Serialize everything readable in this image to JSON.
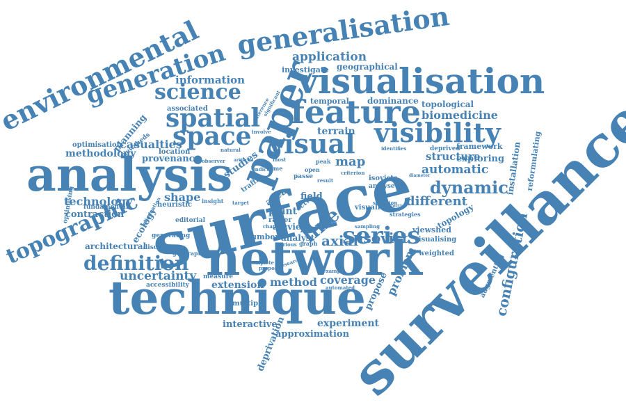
{
  "color": "#4682b4",
  "words": [
    "surface",
    "surveillance",
    "network",
    "technique",
    "analysis",
    "paper",
    "visualisation",
    "feature",
    "generalisation",
    "environmental",
    "generation",
    "visibility",
    "spatial",
    "space",
    "visual",
    "series",
    "science",
    "topographic",
    "definition",
    "line",
    "configuration",
    "dynamic",
    "isovist",
    "axial",
    "application",
    "information",
    "map",
    "automatic",
    "different",
    "uncertainty",
    "coverage",
    "method",
    "problem",
    "technology",
    "structure",
    "biomedicine",
    "terrain",
    "extension",
    "experiment",
    "approximation",
    "interactive",
    "deprivation",
    "propose",
    "shape",
    "methodology",
    "contraction",
    "provenance",
    "casualties",
    "planning",
    "architectural",
    "geographical",
    "topological",
    "investigate",
    "temporal",
    "dominance",
    "exploring",
    "installation",
    "reformulating",
    "framework",
    "augmenting",
    "topology",
    "point",
    "arcview",
    "visualise",
    "visualising",
    "viewshed",
    "weighted",
    "optimisation",
    "viewsheds",
    "location",
    "associated",
    "studies",
    "ecology",
    "fundamental",
    "optimising",
    "heuristic",
    "generating",
    "discussion",
    "editorial",
    "accessibility",
    "measure",
    "multiple",
    "number",
    "analyst",
    "raster",
    "traffic",
    "area",
    "field",
    "analyse",
    "isovists",
    "strategies",
    "deprived",
    "identifies",
    "geographic",
    "insight",
    "natural",
    "observer",
    "involve",
    "difference",
    "significant",
    "target",
    "cctv",
    "graph",
    "open",
    "time",
    "passe",
    "peak",
    "various",
    "complete",
    "research",
    "proposal",
    "automated",
    "sampling",
    "channel",
    "selection",
    "effective",
    "example",
    "criterion",
    "diameter",
    "elimination",
    "most",
    "indice",
    "result",
    "artificial"
  ]
}
